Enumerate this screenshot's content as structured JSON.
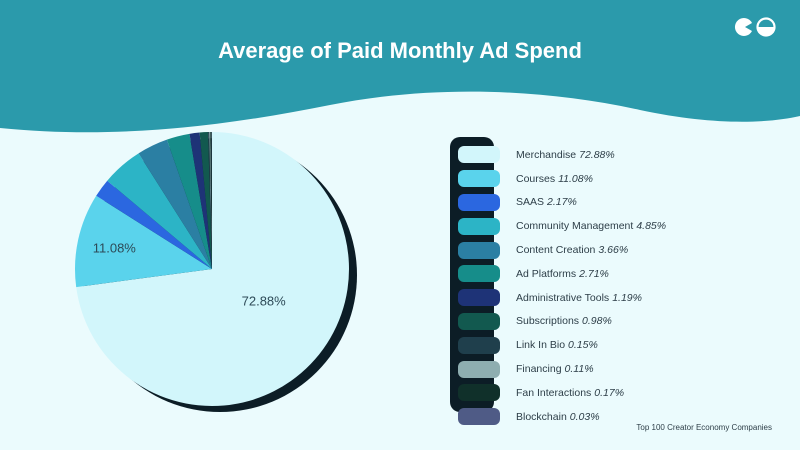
{
  "header": {
    "title": "Average of Paid Monthly Ad Spend",
    "bg_color": "#2b9aab",
    "logo": "creator-economy-logo"
  },
  "source_note": "Top 100 Creator Economy Companies",
  "chart_data": {
    "type": "pie",
    "title": "Average of Paid Monthly Ad Spend",
    "legend_placement": "right",
    "slices": [
      {
        "label": "Merchandise",
        "value": 72.88,
        "display": "72.88%",
        "color": "#d2f6fb"
      },
      {
        "label": "Courses",
        "value": 11.08,
        "display": "11.08%",
        "color": "#5ad3ec"
      },
      {
        "label": "SAAS",
        "value": 2.17,
        "display": "2.17%",
        "color": "#2b67e0"
      },
      {
        "label": "Community Management",
        "value": 4.85,
        "display": "4.85%",
        "color": "#2cb4c6"
      },
      {
        "label": "Content Creation",
        "value": 3.66,
        "display": "3.66%",
        "color": "#2b7fa3"
      },
      {
        "label": "Ad Platforms",
        "value": 2.71,
        "display": "2.71%",
        "color": "#168d8a"
      },
      {
        "label": "Administrative Tools",
        "value": 1.19,
        "display": "1.19%",
        "color": "#1e3377"
      },
      {
        "label": "Subscriptions",
        "value": 0.98,
        "display": "0.98%",
        "color": "#12594f"
      },
      {
        "label": "Link In Bio",
        "value": 0.15,
        "display": "0.15%",
        "color": "#1f3f4c"
      },
      {
        "label": "Financing",
        "value": 0.11,
        "display": "0.11%",
        "color": "#8eaeb0"
      },
      {
        "label": "Fan Interactions",
        "value": 0.17,
        "display": "0.17%",
        "color": "#10302a"
      },
      {
        "label": "Blockchain",
        "value": 0.03,
        "display": "0.03%",
        "color": "#4f5b86"
      }
    ],
    "data_labels_shown": [
      "Merchandise",
      "Courses"
    ]
  }
}
